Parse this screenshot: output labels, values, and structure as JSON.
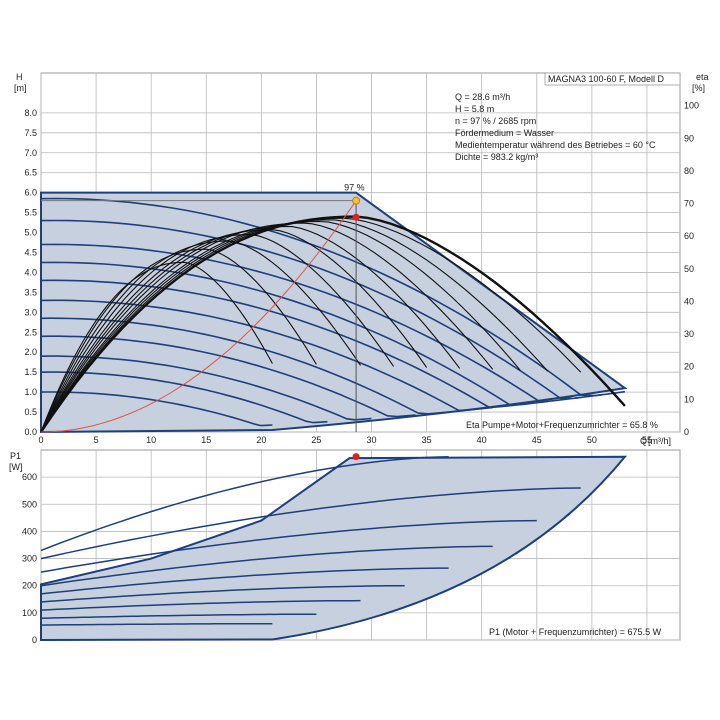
{
  "chart_data": [
    {
      "type": "line",
      "panel": "pump-curve",
      "y_title": "H",
      "y_unit": "[m]",
      "y2_title": "eta",
      "y2_unit": "[%]",
      "x_title": "Q",
      "x_unit": "[m³/h]",
      "xlim": [
        0,
        58
      ],
      "ylim": [
        0,
        9
      ],
      "y2lim": [
        0,
        110
      ],
      "x_ticks": [
        "0",
        "5",
        "10",
        "15",
        "20",
        "25",
        "30",
        "35",
        "40",
        "45",
        "50",
        "55"
      ],
      "y_ticks": [
        "0.0",
        "0.5",
        "1.0",
        "1.5",
        "2.0",
        "2.5",
        "3.0",
        "3.5",
        "4.0",
        "4.5",
        "5.0",
        "5.5",
        "6.0",
        "6.5",
        "7.0",
        "7.5",
        "8.0"
      ],
      "y2_ticks": [
        "0",
        "10",
        "20",
        "30",
        "40",
        "50",
        "60",
        "70",
        "80",
        "90",
        "100"
      ],
      "model_label": "MAGNA3 100-60 F, Modell D",
      "info_lines": [
        "Q = 28.6 m³/h",
        "H = 5.8 m",
        "n = 97 % / 2685 rpm",
        "Fördermedium = Wasser",
        "Medientemperatur während des Betriebes = 60 °C",
        "Dichte = 983.2 kg/m³"
      ],
      "duty_point_label": "97 %",
      "duty_point": {
        "x": 28.6,
        "y": 5.8
      },
      "eta_point": {
        "x": 28.6,
        "y": 65.8
      },
      "footer": "Eta Pumpe+Motor+Frequenzumrichter = 65.8 %",
      "envelope": [
        [
          0,
          0
        ],
        [
          0,
          6.0
        ],
        [
          28.6,
          6.0
        ],
        [
          53,
          1.1
        ],
        [
          21,
          0
        ]
      ],
      "head_curves": [
        {
          "H0": 5.85,
          "Qmax": 53
        },
        {
          "H0": 5.3,
          "Qmax": 51
        },
        {
          "H0": 4.7,
          "Qmax": 49
        },
        {
          "H0": 4.25,
          "Qmax": 46
        },
        {
          "H0": 3.8,
          "Qmax": 44
        },
        {
          "H0": 3.3,
          "Qmax": 41
        },
        {
          "H0": 2.85,
          "Qmax": 37
        },
        {
          "H0": 2.4,
          "Qmax": 34
        },
        {
          "H0": 1.9,
          "Qmax": 30
        },
        {
          "H0": 1.5,
          "Qmax": 26
        },
        {
          "H0": 1.0,
          "Qmax": 21
        }
      ],
      "eta_curves": [
        {
          "peak_x": 28.6,
          "peak_eta": 66,
          "end_x": 53
        },
        {
          "peak_x": 27.5,
          "peak_eta": 65.5,
          "end_x": 49
        },
        {
          "peak_x": 26.5,
          "peak_eta": 65,
          "end_x": 46
        },
        {
          "peak_x": 25.5,
          "peak_eta": 64.5,
          "end_x": 43.5
        },
        {
          "peak_x": 24,
          "peak_eta": 64,
          "end_x": 41
        },
        {
          "peak_x": 22.5,
          "peak_eta": 63,
          "end_x": 38
        },
        {
          "peak_x": 21,
          "peak_eta": 62,
          "end_x": 35
        },
        {
          "peak_x": 19,
          "peak_eta": 60.5,
          "end_x": 32
        },
        {
          "peak_x": 17,
          "peak_eta": 58.5,
          "end_x": 29
        },
        {
          "peak_x": 15,
          "peak_eta": 56,
          "end_x": 25
        },
        {
          "peak_x": 13,
          "peak_eta": 52,
          "end_x": 21
        }
      ]
    },
    {
      "type": "line",
      "panel": "power-curve",
      "y_title": "P1",
      "y_unit": "[W]",
      "x_title": "",
      "xlim": [
        0,
        58
      ],
      "ylim": [
        0,
        700
      ],
      "y_ticks": [
        "0",
        "100",
        "200",
        "300",
        "400",
        "500",
        "600"
      ],
      "duty_point": {
        "x": 28.6,
        "y": 675.5
      },
      "footer": "P1 (Motor + Frequenzumrichter) = 675.5 W",
      "envelope_top": [
        [
          0,
          205
        ],
        [
          10,
          300
        ],
        [
          20,
          440
        ],
        [
          28,
          670
        ],
        [
          53,
          675
        ]
      ],
      "envelope_bottom_end": [
        53,
        0
      ],
      "power_curves": [
        {
          "P0": 330,
          "Pend": 675,
          "Qend": 37
        },
        {
          "P0": 300,
          "Pend": 560,
          "Qend": 49
        },
        {
          "P0": 250,
          "Pend": 440,
          "Qend": 45
        },
        {
          "P0": 200,
          "Pend": 345,
          "Qend": 41
        },
        {
          "P0": 170,
          "Pend": 265,
          "Qend": 37
        },
        {
          "P0": 140,
          "Pend": 200,
          "Qend": 33
        },
        {
          "P0": 110,
          "Pend": 145,
          "Qend": 29
        },
        {
          "P0": 80,
          "Pend": 95,
          "Qend": 25
        },
        {
          "P0": 55,
          "Pend": 60,
          "Qend": 21
        }
      ]
    }
  ],
  "colors": {
    "fill": "#c6d0de",
    "curve": "#1e3f7a",
    "eta_curve": "#111111",
    "system_curve": "#e0534a",
    "point_red": "#e02020",
    "point_yellow": "#f2c13a",
    "grid": "#b9b9b9"
  }
}
